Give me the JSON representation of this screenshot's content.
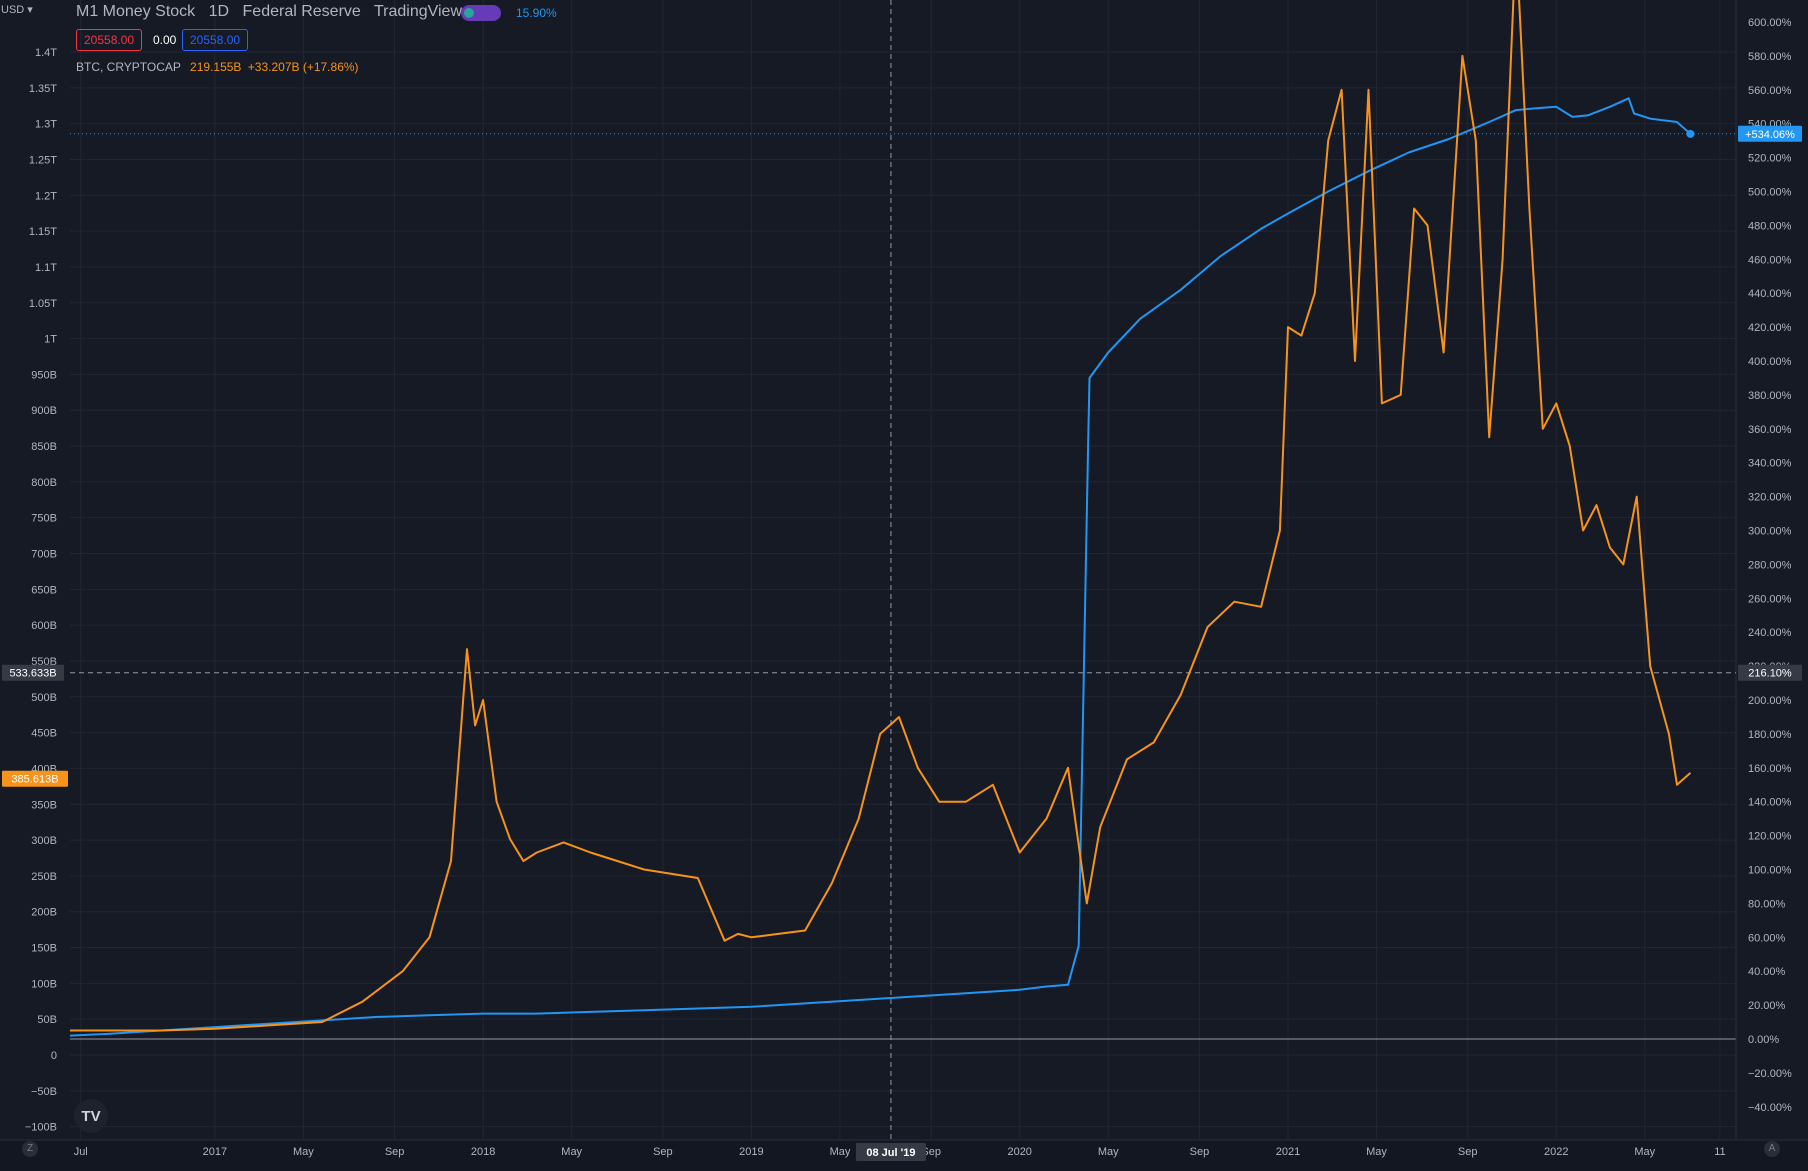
{
  "header": {
    "currency": "USD",
    "symbol_title": "M1 Money Stock",
    "interval": "1D",
    "source": "Federal Reserve",
    "publisher": "TradingView",
    "compare_percent": "15.90%",
    "price_left": "20558.00",
    "price_mid": "0.00",
    "price_right": "20558.00",
    "btc_label": "BTC, CRYPTOCAP",
    "btc_value": "219.155B",
    "btc_change": "+33.207B (+17.86%)"
  },
  "logo_text": "TV",
  "corner_left": "Z",
  "corner_right": "A",
  "colors": {
    "background": "#161a25",
    "grid": "#232632",
    "m1_series": "#2196f3",
    "btc_series": "#f7931a",
    "text": "#b2b5be"
  },
  "chart_data": {
    "type": "line",
    "title": "M1 Money Stock 1D Federal Reserve",
    "left_axis": {
      "ticks": [
        "1.4T",
        "1.35T",
        "1.3T",
        "1.25T",
        "1.2T",
        "1.15T",
        "1.1T",
        "1.05T",
        "1T",
        "950B",
        "900B",
        "850B",
        "800B",
        "750B",
        "700B",
        "650B",
        "600B",
        "550B",
        "500B",
        "450B",
        "400B",
        "350B",
        "300B",
        "250B",
        "200B",
        "150B",
        "100B",
        "50B",
        "0",
        "−50B",
        "−100B"
      ],
      "tick_values": [
        1400,
        1350,
        1300,
        1250,
        1200,
        1150,
        1100,
        1050,
        1000,
        950,
        900,
        850,
        800,
        750,
        700,
        650,
        600,
        550,
        500,
        450,
        400,
        350,
        300,
        250,
        200,
        150,
        100,
        50,
        0,
        -50,
        -100
      ],
      "unit": "B",
      "range": [
        -100,
        1420
      ],
      "crosshair_label": "533.633B",
      "crosshair_value": 533.633,
      "btc_last_label": "385.613B",
      "btc_last_value": 385.613
    },
    "right_axis": {
      "ticks": [
        "600.00%",
        "580.00%",
        "560.00%",
        "540.00%",
        "520.00%",
        "500.00%",
        "480.00%",
        "460.00%",
        "440.00%",
        "420.00%",
        "400.00%",
        "380.00%",
        "360.00%",
        "340.00%",
        "320.00%",
        "300.00%",
        "280.00%",
        "260.00%",
        "240.00%",
        "220.00%",
        "200.00%",
        "180.00%",
        "160.00%",
        "140.00%",
        "120.00%",
        "100.00%",
        "80.00%",
        "60.00%",
        "40.00%",
        "20.00%",
        "0.00%",
        "−20.00%",
        "−40.00%"
      ],
      "tick_values": [
        600,
        580,
        560,
        540,
        520,
        500,
        480,
        460,
        440,
        420,
        400,
        380,
        360,
        340,
        320,
        300,
        280,
        260,
        240,
        220,
        200,
        180,
        160,
        140,
        120,
        100,
        80,
        60,
        40,
        20,
        0,
        -20,
        -40
      ],
      "unit": "%",
      "m1_last_label": "+534.06%",
      "m1_last_value": 534.06,
      "crosshair_label": "216.10%"
    },
    "x_axis": {
      "ticks": [
        "Jul",
        "2017",
        "May",
        "Sep",
        "2018",
        "May",
        "Sep",
        "2019",
        "May",
        "Sep",
        "2020",
        "May",
        "Sep",
        "2021",
        "May",
        "Sep",
        "2022",
        "May",
        "11"
      ],
      "tick_dates": [
        2016.5,
        2017.0,
        2017.33,
        2017.67,
        2018.0,
        2018.33,
        2018.67,
        2019.0,
        2019.33,
        2019.67,
        2020.0,
        2020.33,
        2020.67,
        2021.0,
        2021.33,
        2021.67,
        2022.0,
        2022.33,
        2022.61
      ],
      "range": [
        2016.46,
        2022.67
      ],
      "crosshair_label": "08 Jul '19",
      "crosshair_date": 2019.52
    },
    "series": [
      {
        "name": "M1 Money Stock",
        "color": "#2196f3",
        "x": [
          2016.46,
          2016.6,
          2016.8,
          2017.0,
          2017.2,
          2017.4,
          2017.6,
          2017.8,
          2018.0,
          2018.2,
          2018.4,
          2018.6,
          2018.8,
          2019.0,
          2019.2,
          2019.4,
          2019.6,
          2019.8,
          2020.0,
          2020.1,
          2020.18,
          2020.22,
          2020.255,
          2020.26,
          2020.33,
          2020.45,
          2020.6,
          2020.75,
          2020.9,
          2021.0,
          2021.15,
          2021.3,
          2021.45,
          2021.6,
          2021.75,
          2021.85,
          2021.92,
          2022.0,
          2022.06,
          2022.12,
          2022.2,
          2022.27,
          2022.29,
          2022.35,
          2022.45,
          2022.5
        ],
        "y": [
          2,
          3,
          5,
          7,
          9,
          11,
          13,
          14,
          15,
          15,
          16,
          17,
          18,
          19,
          21,
          23,
          25,
          27,
          29,
          31,
          32,
          55,
          350,
          390,
          405,
          425,
          442,
          462,
          478,
          487,
          500,
          512,
          523,
          531,
          541,
          548,
          549,
          550,
          544,
          545,
          550,
          555,
          546,
          543,
          541,
          534
        ]
      },
      {
        "name": "BTC, CRYPTOCAP",
        "color": "#f7931a",
        "x": [
          2016.46,
          2016.8,
          2017.0,
          2017.2,
          2017.4,
          2017.55,
          2017.7,
          2017.8,
          2017.88,
          2017.94,
          2017.97,
          2018.0,
          2018.05,
          2018.1,
          2018.15,
          2018.2,
          2018.3,
          2018.4,
          2018.5,
          2018.6,
          2018.8,
          2018.9,
          2018.95,
          2019.0,
          2019.1,
          2019.2,
          2019.3,
          2019.4,
          2019.48,
          2019.55,
          2019.62,
          2019.7,
          2019.8,
          2019.9,
          2020.0,
          2020.1,
          2020.18,
          2020.25,
          2020.3,
          2020.4,
          2020.5,
          2020.6,
          2020.7,
          2020.8,
          2020.9,
          2020.97,
          2021.0,
          2021.05,
          2021.1,
          2021.15,
          2021.2,
          2021.25,
          2021.3,
          2021.35,
          2021.42,
          2021.47,
          2021.52,
          2021.58,
          2021.65,
          2021.7,
          2021.75,
          2021.8,
          2021.85,
          2021.9,
          2021.95,
          2022.0,
          2022.05,
          2022.1,
          2022.15,
          2022.2,
          2022.25,
          2022.3,
          2022.35,
          2022.42,
          2022.45,
          2022.5
        ],
        "y": [
          5,
          5,
          6,
          8,
          10,
          22,
          40,
          60,
          105,
          230,
          185,
          200,
          140,
          118,
          105,
          110,
          116,
          110,
          105,
          100,
          95,
          58,
          62,
          60,
          62,
          64,
          92,
          130,
          180,
          190,
          160,
          140,
          140,
          150,
          110,
          130,
          160,
          80,
          125,
          165,
          175,
          203,
          243,
          258,
          255,
          300,
          420,
          415,
          440,
          530,
          560,
          400,
          560,
          375,
          380,
          490,
          480,
          405,
          580,
          530,
          355,
          460,
          650,
          490,
          360,
          375,
          350,
          300,
          315,
          290,
          280,
          320,
          220,
          180,
          150,
          157
        ]
      }
    ],
    "zero_line_value": 0
  }
}
